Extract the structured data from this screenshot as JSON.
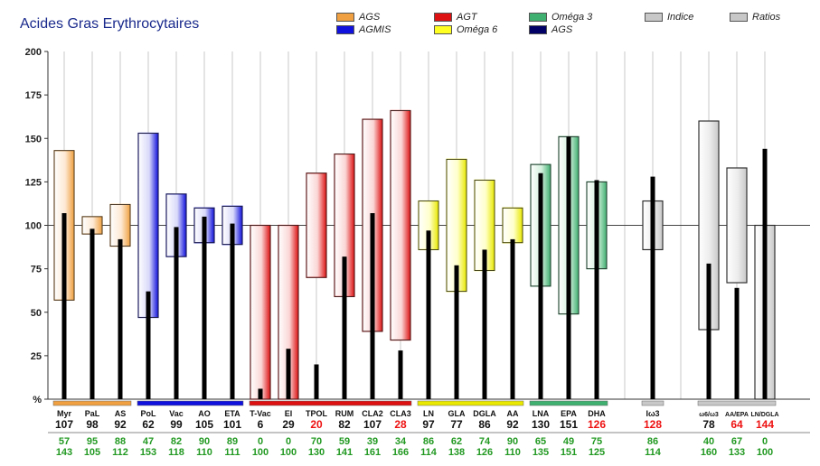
{
  "title": "Acides Gras Erythrocytaires",
  "legend": [
    {
      "label": "AGS",
      "color": "#f0a040"
    },
    {
      "label": "AGT",
      "color": "#dd1111"
    },
    {
      "label": "Oméga 3",
      "color": "#40b070"
    },
    {
      "label": "Indice",
      "color": "#c8c8c8"
    },
    {
      "label": "Ratios",
      "color": "#c8c8c8"
    },
    {
      "label": "AGMIS",
      "color": "#1111dd"
    },
    {
      "label": "Oméga 6",
      "color": "#ffff22"
    },
    {
      "label": "AGS",
      "color": "#000066"
    }
  ],
  "chart_data": {
    "type": "bar",
    "ylim": [
      0,
      200
    ],
    "y_ticks": [
      0,
      25,
      50,
      75,
      100,
      125,
      150,
      175,
      200
    ],
    "y_tick_labels": [
      "%",
      "25",
      "50",
      "75",
      "100",
      "125",
      "150",
      "175",
      "200"
    ],
    "reference_line": 100,
    "grid": "vertical",
    "groups": [
      {
        "name": "AGS",
        "color": "#f0a040",
        "light": "#fde8d2",
        "items": [
          {
            "label": "Myr",
            "value": 107,
            "low": 57,
            "high": 143,
            "flag": false
          },
          {
            "label": "PaL",
            "value": 98,
            "low": 95,
            "high": 105,
            "flag": false
          },
          {
            "label": "AS",
            "value": 92,
            "low": 88,
            "high": 112,
            "flag": false
          }
        ]
      },
      {
        "name": "AGMIS",
        "color": "#1111dd",
        "light": "#d8d8fa",
        "items": [
          {
            "label": "PoL",
            "value": 62,
            "low": 47,
            "high": 153,
            "flag": false
          },
          {
            "label": "Vac",
            "value": 99,
            "low": 82,
            "high": 118,
            "flag": false
          },
          {
            "label": "AO",
            "value": 105,
            "low": 90,
            "high": 110,
            "flag": false
          },
          {
            "label": "ETA",
            "value": 101,
            "low": 89,
            "high": 111,
            "flag": false
          }
        ]
      },
      {
        "name": "AGT",
        "color": "#dd1111",
        "light": "#fbd6d6",
        "items": [
          {
            "label": "T-Vac",
            "value": 6,
            "low": 0,
            "high": 100,
            "flag": false
          },
          {
            "label": "El",
            "value": 29,
            "low": 0,
            "high": 100,
            "flag": false
          },
          {
            "label": "TPOL",
            "value": 20,
            "low": 70,
            "high": 130,
            "flag": true
          },
          {
            "label": "RUM",
            "value": 82,
            "low": 59,
            "high": 141,
            "flag": false
          },
          {
            "label": "CLA2",
            "value": 107,
            "low": 39,
            "high": 161,
            "flag": false
          },
          {
            "label": "CLA3",
            "value": 28,
            "low": 34,
            "high": 166,
            "flag": true
          }
        ]
      },
      {
        "name": "Oméga 6",
        "color": "#e8e800",
        "light": "#ffffcc",
        "items": [
          {
            "label": "LN",
            "value": 97,
            "low": 86,
            "high": 114,
            "flag": false
          },
          {
            "label": "GLA",
            "value": 77,
            "low": 62,
            "high": 138,
            "flag": false
          },
          {
            "label": "DGLA",
            "value": 86,
            "low": 74,
            "high": 126,
            "flag": false
          },
          {
            "label": "AA",
            "value": 92,
            "low": 90,
            "high": 110,
            "flag": false
          }
        ]
      },
      {
        "name": "Oméga 3",
        "color": "#40b070",
        "light": "#d2f0dc",
        "items": [
          {
            "label": "LNA",
            "value": 130,
            "low": 65,
            "high": 135,
            "flag": false
          },
          {
            "label": "EPA",
            "value": 151,
            "low": 49,
            "high": 151,
            "flag": false
          },
          {
            "label": "DHA",
            "value": 126,
            "low": 75,
            "high": 125,
            "flag": true
          }
        ]
      },
      {
        "name": "Indice",
        "color": "#c8c8c8",
        "light": "#ececec",
        "items": [
          {
            "label": "Iω3",
            "value": 128,
            "low": 86,
            "high": 114,
            "flag": true
          }
        ]
      },
      {
        "name": "Ratios",
        "color": "#c8c8c8",
        "light": "#ececec",
        "items": [
          {
            "label": "ω6/ω3",
            "value": 78,
            "low": 40,
            "high": 160,
            "flag": false
          },
          {
            "label": "AA/EPA",
            "value": 64,
            "low": 67,
            "high": 133,
            "flag": true
          },
          {
            "label": "LN/DGLA",
            "value": 144,
            "low": 0,
            "high": 100,
            "flag": true
          }
        ]
      }
    ]
  }
}
